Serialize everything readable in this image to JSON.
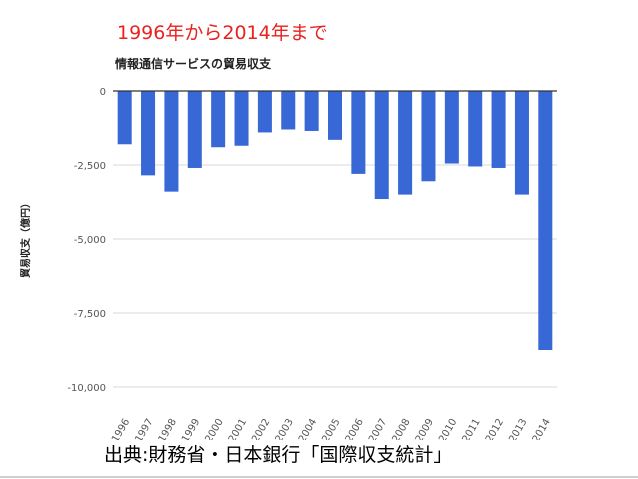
{
  "headline": "1996年から2014年まで",
  "source_note": "出典:財務省・日本銀行「国際収支統計」",
  "colors": {
    "headline": "#e8231f",
    "bar": "#3867d6",
    "grid": "#d9d9d9",
    "zero_line": "#333333",
    "text": "#222222",
    "tick_text": "#555555"
  },
  "chart_data": {
    "type": "bar",
    "title": "情報通信サービスの貿易収支",
    "xlabel": "",
    "ylabel": "貿易収支（億円）",
    "categories": [
      "1996",
      "1997",
      "1998",
      "1999",
      "2000",
      "2001",
      "2002",
      "2003",
      "2004",
      "2005",
      "2006",
      "2007",
      "2008",
      "2009",
      "2010",
      "2011",
      "2012",
      "2013",
      "2014"
    ],
    "series": [
      {
        "values": [
          -1800,
          -2850,
          -3400,
          -2600,
          -1900,
          -1850,
          -1400,
          -1300,
          -1350,
          -1650,
          -2800,
          -3650,
          -3500,
          -3050,
          -2450,
          -2550,
          -2600,
          -3500,
          -8750
        ]
      }
    ],
    "ylim": [
      -10000,
      0
    ],
    "yticks": [
      0,
      -2500,
      -5000,
      -7500,
      -10000
    ],
    "ytick_labels": [
      "0",
      "-2,500",
      "-5,000",
      "-7,500",
      "-10,000"
    ],
    "grid": true,
    "legend": "none"
  }
}
